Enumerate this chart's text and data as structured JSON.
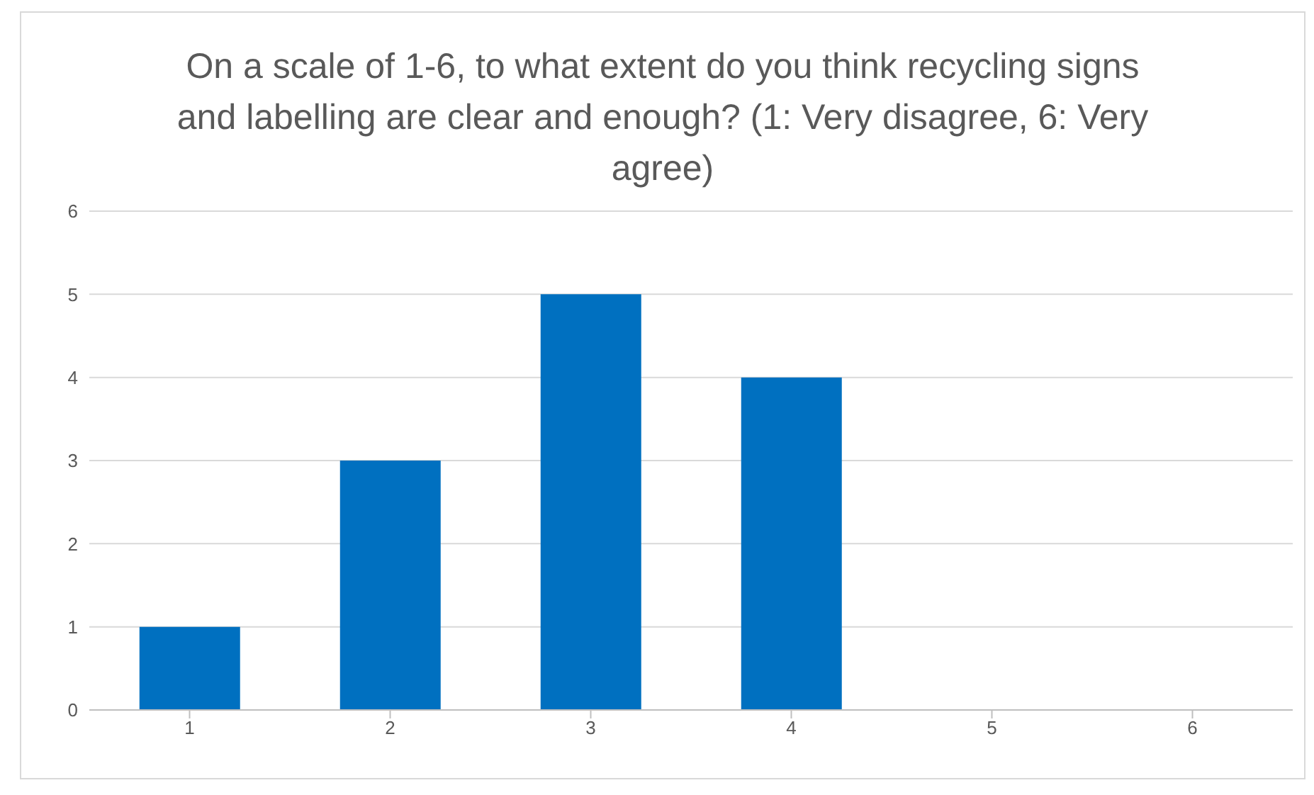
{
  "chart_data": {
    "type": "bar",
    "title": "On a scale of 1-6, to what extent do you think recycling signs and labelling are clear and enough? (1: Very disagree, 6: Very agree)",
    "categories": [
      "1",
      "2",
      "3",
      "4",
      "5",
      "6"
    ],
    "values": [
      1,
      3,
      5,
      4,
      0,
      0
    ],
    "color": "#0070c0",
    "ylim": [
      0,
      6
    ],
    "yticks": [
      0,
      1,
      2,
      3,
      4,
      5,
      6
    ],
    "grid": "y"
  }
}
